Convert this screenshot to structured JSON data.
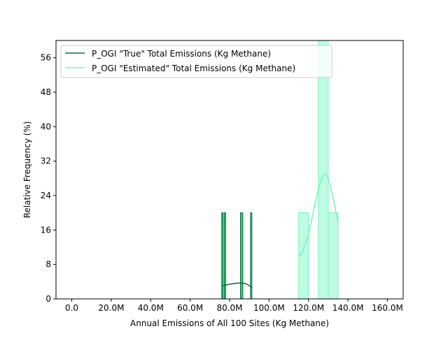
{
  "chart_data": {
    "type": "histogram",
    "title": "",
    "xlabel": "Annual Emissions of All 100 Sites (Kg Methane)",
    "ylabel": "Relative Frequency (%)",
    "xlim": [
      -8000000,
      168000000
    ],
    "ylim": [
      0,
      60
    ],
    "x_ticks": [
      0,
      20000000,
      40000000,
      60000000,
      80000000,
      100000000,
      120000000,
      140000000,
      160000000
    ],
    "x_tick_labels": [
      "0.0",
      "20.0M",
      "40.0M",
      "60.0M",
      "80.0M",
      "100.0M",
      "120.0M",
      "140.0M",
      "160.0M"
    ],
    "y_ticks": [
      0,
      8,
      16,
      24,
      32,
      40,
      48,
      56
    ],
    "y_tick_labels": [
      "0",
      "8",
      "16",
      "24",
      "32",
      "40",
      "48",
      "56"
    ],
    "legend_position": "top-left",
    "series": [
      {
        "name": "P_OGI \"True\" Total Emissions (Kg Methane)",
        "color": "#0b6b3a",
        "fill": "#2fcf80",
        "bins": [
          {
            "x0": 76000000,
            "x1": 76700000,
            "y": 20
          },
          {
            "x0": 77300000,
            "x1": 78000000,
            "y": 20
          },
          {
            "x0": 85500000,
            "x1": 86700000,
            "y": 20
          },
          {
            "x0": 90600000,
            "x1": 91300000,
            "y": 20
          }
        ],
        "kde": [
          [
            76000000,
            3.0
          ],
          [
            78000000,
            3.2
          ],
          [
            80000000,
            3.4
          ],
          [
            82000000,
            3.55
          ],
          [
            84000000,
            3.65
          ],
          [
            86000000,
            3.7
          ],
          [
            88000000,
            3.55
          ],
          [
            90000000,
            3.1
          ],
          [
            91300000,
            2.6
          ]
        ]
      },
      {
        "name": "P_OGI \"Estimated\" Total Emissions (Kg Methane)",
        "color": "#7cf2bf",
        "fill": "#bdfbe2",
        "bins": [
          {
            "x0": 115000000,
            "x1": 120000000,
            "y": 20
          },
          {
            "x0": 125000000,
            "x1": 130000000,
            "y": 60
          },
          {
            "x0": 130000000,
            "x1": 135000000,
            "y": 20
          }
        ],
        "kde": [
          [
            115000000,
            9.8
          ],
          [
            117000000,
            11.0
          ],
          [
            119000000,
            13.5
          ],
          [
            121000000,
            17.0
          ],
          [
            123000000,
            21.5
          ],
          [
            125000000,
            25.5
          ],
          [
            127000000,
            28.3
          ],
          [
            128500000,
            29.0
          ],
          [
            130000000,
            28.0
          ],
          [
            132000000,
            24.5
          ],
          [
            134000000,
            20.0
          ],
          [
            135000000,
            17.8
          ]
        ]
      }
    ]
  }
}
